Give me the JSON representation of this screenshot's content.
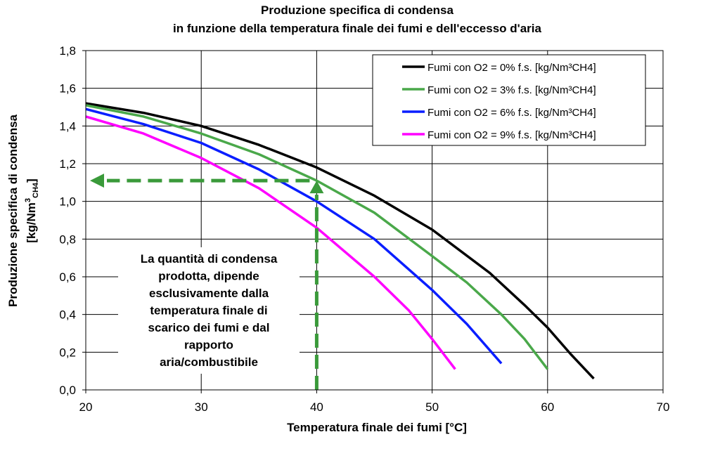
{
  "chart_data": {
    "type": "line",
    "title": "Produzione specifica di condensa",
    "subtitle": "in funzione della temperatura finale dei fumi e dell'eccesso d'aria",
    "xlabel": "Temperatura finale dei fumi [°C]",
    "ylabel_line1": "Produzione specifica di condensa",
    "ylabel_line2_prefix": "[kg/Nm",
    "ylabel_sup": "3",
    "ylabel_sub": "CH4",
    "ylabel_suffix": "]",
    "xlim": [
      20,
      70
    ],
    "ylim": [
      0,
      1.8
    ],
    "x_ticks": [
      20,
      30,
      40,
      50,
      60,
      70
    ],
    "x_tick_labels": [
      "20",
      "30",
      "40",
      "50",
      "60",
      "70"
    ],
    "y_ticks": [
      0,
      0.2,
      0.4,
      0.6,
      0.8,
      1.0,
      1.2,
      1.4,
      1.6,
      1.8
    ],
    "y_tick_labels": [
      "0,0",
      "0,2",
      "0,4",
      "0,6",
      "0,8",
      "1,0",
      "1,2",
      "1,4",
      "1,6",
      "1,8"
    ],
    "grid": true,
    "legend_position": "top-right",
    "series": [
      {
        "name": "Fumi con O2 = 0% f.s. [kg/Nm³CH4]",
        "color": "#000000",
        "x": [
          20,
          25,
          30,
          35,
          40,
          45,
          50,
          55,
          58,
          60,
          62,
          64
        ],
        "y": [
          1.52,
          1.47,
          1.4,
          1.3,
          1.18,
          1.03,
          0.85,
          0.62,
          0.45,
          0.33,
          0.19,
          0.06
        ]
      },
      {
        "name": "Fumi con O2 = 3% f.s. [kg/Nm³CH4]",
        "color": "#4aa84a",
        "x": [
          20,
          25,
          30,
          35,
          40,
          45,
          50,
          53,
          56,
          58,
          60
        ],
        "y": [
          1.51,
          1.45,
          1.36,
          1.25,
          1.11,
          0.94,
          0.71,
          0.57,
          0.4,
          0.27,
          0.11
        ]
      },
      {
        "name": "Fumi con O2 = 6% f.s. [kg/Nm³CH4]",
        "color": "#0a1eff",
        "x": [
          20,
          25,
          30,
          35,
          40,
          45,
          50,
          53,
          56
        ],
        "y": [
          1.49,
          1.41,
          1.31,
          1.17,
          1.0,
          0.8,
          0.53,
          0.35,
          0.14
        ]
      },
      {
        "name": "Fumi con O2 = 9% f.s. [kg/Nm³CH4]",
        "color": "#ff00ff",
        "x": [
          20,
          25,
          30,
          35,
          40,
          45,
          48,
          50,
          52
        ],
        "y": [
          1.45,
          1.36,
          1.23,
          1.07,
          0.86,
          0.6,
          0.42,
          0.27,
          0.11
        ]
      }
    ],
    "annotation_arrow": {
      "color": "#3a9a3a",
      "x_value": 40,
      "y_value": 1.11,
      "from_y": 0,
      "to_x": 20
    },
    "annotation_text": [
      "La quantità di condensa",
      "prodotta, dipende",
      "esclusivamente dalla",
      "temperatura finale di",
      "scarico dei fumi e dal",
      "rapporto",
      "aria/combustibile"
    ]
  }
}
